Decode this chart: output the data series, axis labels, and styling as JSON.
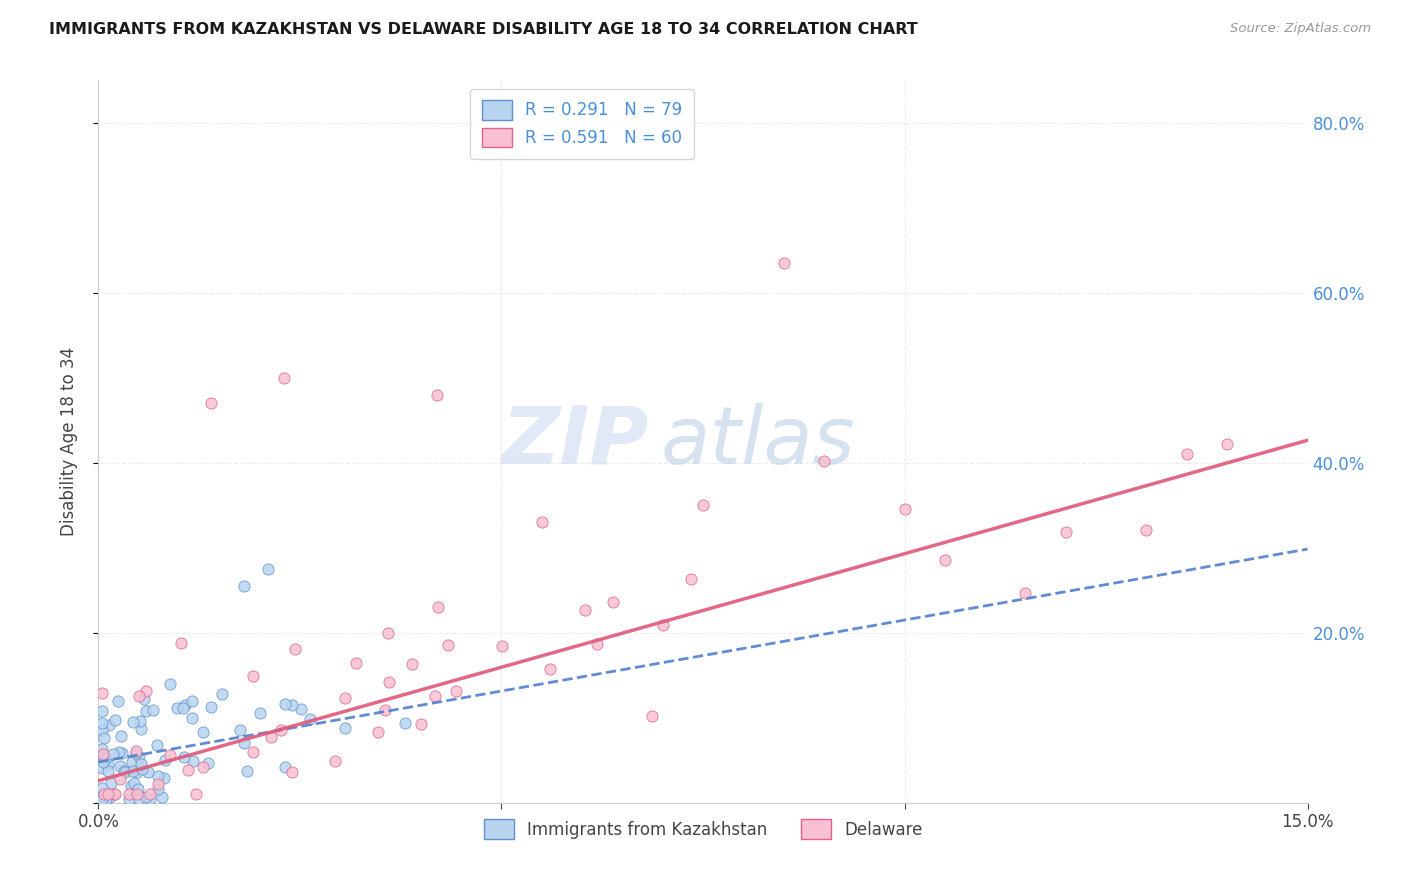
{
  "title": "IMMIGRANTS FROM KAZAKHSTAN VS DELAWARE DISABILITY AGE 18 TO 34 CORRELATION CHART",
  "source": "Source: ZipAtlas.com",
  "ylabel": "Disability Age 18 to 34",
  "x_min": 0.0,
  "x_max": 0.15,
  "y_min": 0.0,
  "y_max": 0.85,
  "legend_entries": [
    {
      "label": "R = 0.291   N = 79",
      "color": "#b8d4f0",
      "edge_color": "#6090cc"
    },
    {
      "label": "R = 0.591   N = 60",
      "color": "#f8c0d0",
      "edge_color": "#e06090"
    }
  ],
  "legend_bottom": [
    {
      "label": "Immigrants from Kazakhstan",
      "color": "#b8d4f0",
      "edge_color": "#6090cc"
    },
    {
      "label": "Delaware",
      "color": "#f8c0d0",
      "edge_color": "#e06090"
    }
  ],
  "scatter_color_kaz": "#b8d4f0",
  "scatter_edgecolor_kaz": "#6090cc",
  "scatter_color_del": "#f8c0d0",
  "scatter_edgecolor_del": "#e06090",
  "trendline_kaz_color": "#5080d0",
  "trendline_del_color": "#e05878",
  "watermark_zip": "ZIP",
  "watermark_atlas": "atlas",
  "background_color": "#ffffff",
  "grid_color": "#e8e8e8",
  "kaz_trend_intercept": 0.048,
  "kaz_trend_slope": 1.67,
  "del_trend_intercept": 0.026,
  "del_trend_slope": 2.67
}
